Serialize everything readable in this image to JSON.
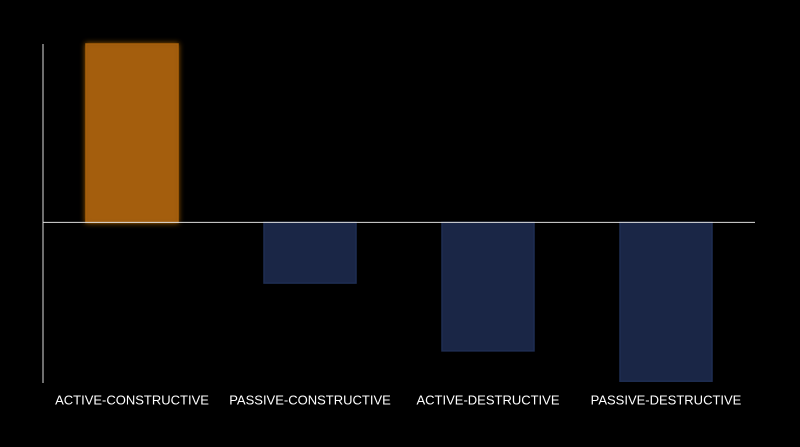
{
  "chart_data": {
    "type": "bar",
    "categories": [
      "ACTIVE-CONSTRUCTIVE",
      "PASSIVE-CONSTRUCTIVE",
      "ACTIVE-DESTRUCTIVE",
      "PASSIVE-DESTRUCTIVE"
    ],
    "values": [
      100,
      -34,
      -72,
      -89
    ],
    "colors": [
      "#a8600a",
      "#1e2d52",
      "#1e2d52",
      "#1e2d52"
    ],
    "ylim": [
      -90,
      100
    ]
  }
}
